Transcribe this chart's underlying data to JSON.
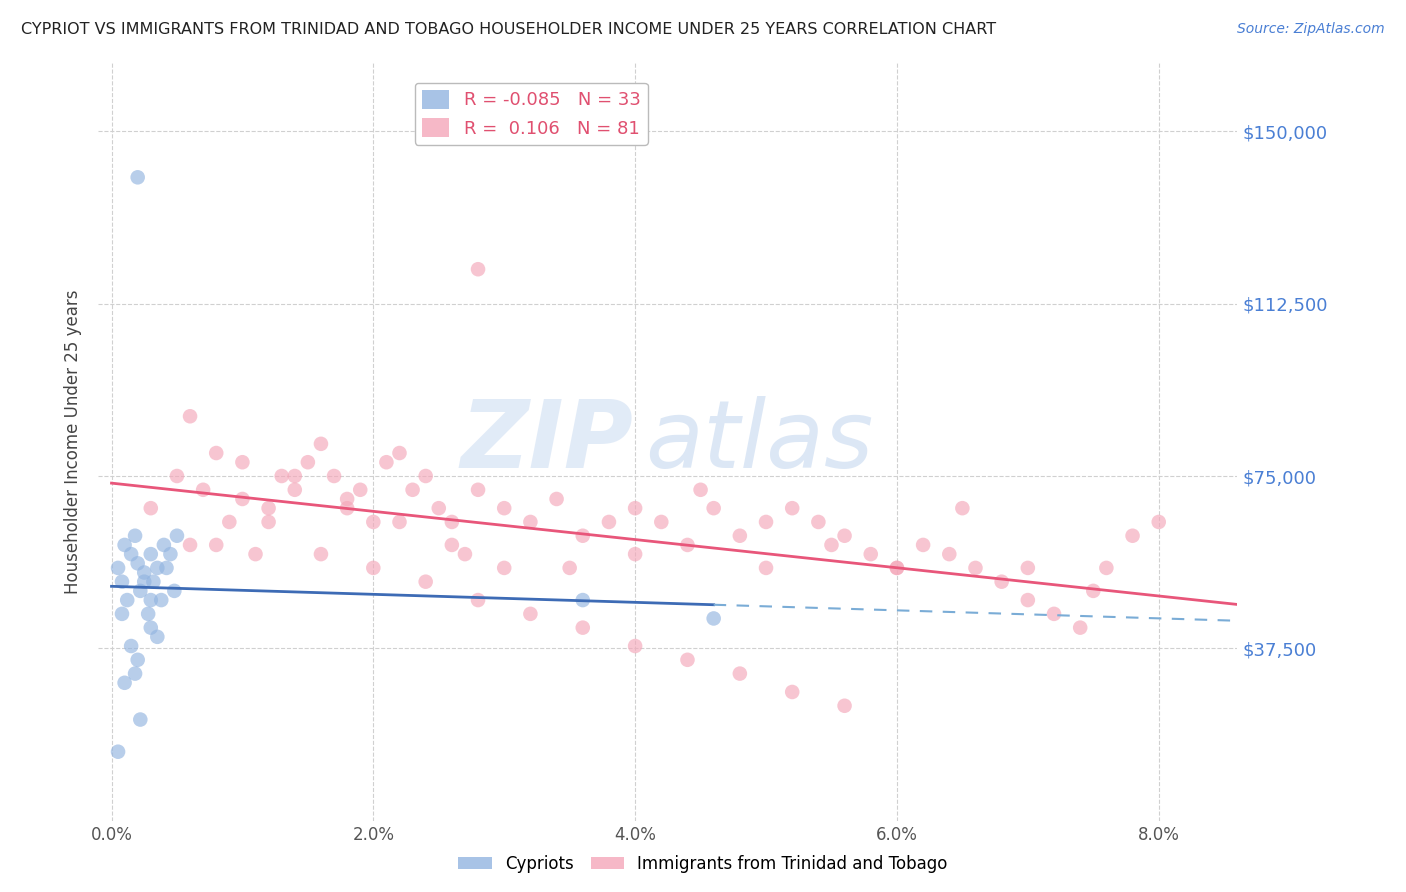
{
  "title": "CYPRIOT VS IMMIGRANTS FROM TRINIDAD AND TOBAGO HOUSEHOLDER INCOME UNDER 25 YEARS CORRELATION CHART",
  "source": "Source: ZipAtlas.com",
  "ylabel": "Householder Income Under 25 years",
  "xlabel_ticks": [
    "0.0%",
    "2.0%",
    "4.0%",
    "6.0%",
    "8.0%"
  ],
  "xlabel_vals": [
    0.0,
    0.02,
    0.04,
    0.06,
    0.08
  ],
  "ytick_labels": [
    "$37,500",
    "$75,000",
    "$112,500",
    "$150,000"
  ],
  "ytick_vals": [
    37500,
    75000,
    112500,
    150000
  ],
  "ylim": [
    0,
    165000
  ],
  "xlim": [
    -0.001,
    0.086
  ],
  "cypriot_R": "-0.085",
  "cypriot_N": "33",
  "tt_R": "0.106",
  "tt_N": "81",
  "legend_label1": "Cypriots",
  "legend_label2": "Immigrants from Trinidad and Tobago",
  "color_blue": "#92b4e0",
  "color_pink": "#f4a7b9",
  "line_blue_solid": "#3d6bb5",
  "line_blue_dash": "#7aacd6",
  "line_pink": "#e8567a",
  "watermark_color": "#d0dff0",
  "background_color": "#ffffff",
  "grid_color": "#d0d0d0",
  "title_color": "#222222",
  "axis_label_color": "#444444",
  "ytick_color": "#4a7fd4",
  "xtick_color": "#555555",
  "cypriot_x": [
    0.0005,
    0.001,
    0.0015,
    0.0008,
    0.0012,
    0.0018,
    0.002,
    0.0022,
    0.0025,
    0.003,
    0.0028,
    0.0032,
    0.0035,
    0.0038,
    0.004,
    0.0042,
    0.0045,
    0.005,
    0.0048,
    0.003,
    0.0015,
    0.002,
    0.0025,
    0.003,
    0.0035,
    0.002,
    0.001,
    0.0008,
    0.0005,
    0.0018,
    0.0022,
    0.036,
    0.046
  ],
  "cypriot_y": [
    55000,
    60000,
    58000,
    52000,
    48000,
    62000,
    56000,
    50000,
    54000,
    58000,
    45000,
    52000,
    55000,
    48000,
    60000,
    55000,
    58000,
    62000,
    50000,
    42000,
    38000,
    140000,
    52000,
    48000,
    40000,
    35000,
    30000,
    45000,
    15000,
    32000,
    22000,
    48000,
    44000
  ],
  "tt_x": [
    0.003,
    0.005,
    0.006,
    0.007,
    0.008,
    0.009,
    0.01,
    0.011,
    0.012,
    0.013,
    0.014,
    0.015,
    0.016,
    0.017,
    0.018,
    0.019,
    0.02,
    0.021,
    0.022,
    0.023,
    0.024,
    0.025,
    0.026,
    0.027,
    0.028,
    0.03,
    0.032,
    0.034,
    0.036,
    0.038,
    0.04,
    0.042,
    0.044,
    0.046,
    0.048,
    0.05,
    0.052,
    0.054,
    0.056,
    0.058,
    0.06,
    0.062,
    0.064,
    0.066,
    0.068,
    0.07,
    0.072,
    0.074,
    0.076,
    0.078,
    0.08,
    0.006,
    0.01,
    0.014,
    0.018,
    0.022,
    0.026,
    0.03,
    0.035,
    0.04,
    0.045,
    0.05,
    0.055,
    0.06,
    0.065,
    0.07,
    0.075,
    0.008,
    0.012,
    0.016,
    0.02,
    0.024,
    0.028,
    0.032,
    0.036,
    0.04,
    0.044,
    0.048,
    0.052,
    0.056,
    0.028
  ],
  "tt_y": [
    68000,
    75000,
    60000,
    72000,
    80000,
    65000,
    70000,
    58000,
    68000,
    75000,
    72000,
    78000,
    82000,
    75000,
    68000,
    72000,
    65000,
    78000,
    80000,
    72000,
    75000,
    68000,
    65000,
    58000,
    72000,
    68000,
    65000,
    70000,
    62000,
    65000,
    58000,
    65000,
    60000,
    68000,
    62000,
    55000,
    68000,
    65000,
    62000,
    58000,
    55000,
    60000,
    58000,
    55000,
    52000,
    48000,
    45000,
    42000,
    55000,
    62000,
    65000,
    88000,
    78000,
    75000,
    70000,
    65000,
    60000,
    55000,
    55000,
    68000,
    72000,
    65000,
    60000,
    55000,
    68000,
    55000,
    50000,
    60000,
    65000,
    58000,
    55000,
    52000,
    48000,
    45000,
    42000,
    38000,
    35000,
    32000,
    28000,
    25000,
    120000
  ]
}
